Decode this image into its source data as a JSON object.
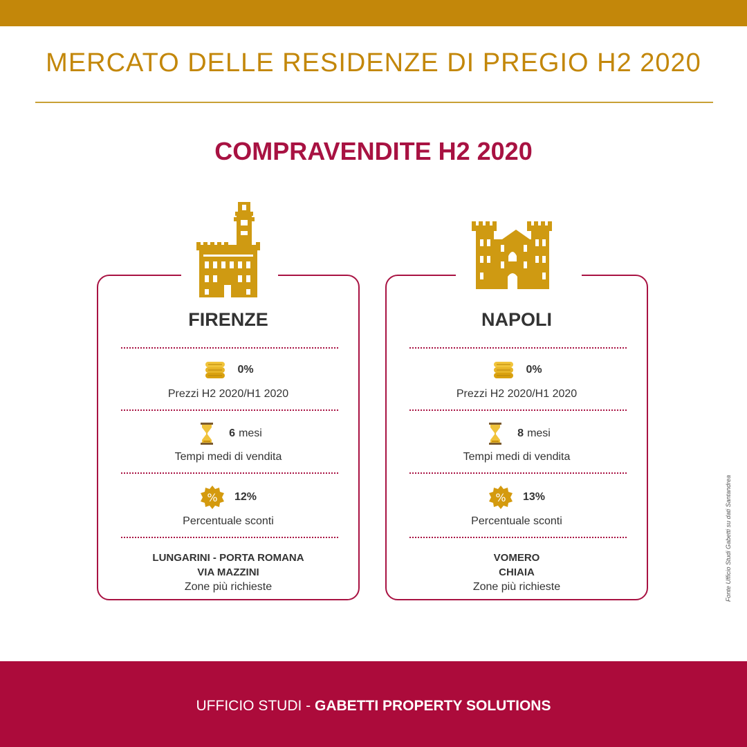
{
  "header": {
    "title": "MERCATO DELLE RESIDENZE DI PREGIO H2 2020",
    "subtitle": "COMPRAVENDITE H2 2020"
  },
  "cards": [
    {
      "city": "FIRENZE",
      "price_value": "0%",
      "price_label": "Prezzi H2 2020/H1 2020",
      "time_value": "6",
      "time_unit": "mesi",
      "time_label": "Tempi medi di vendita",
      "discount_value": "12%",
      "discount_label": "Percentuale sconti",
      "zones_line1": "LUNGARINI - PORTA ROMANA",
      "zones_line2": "VIA MAZZINI",
      "zones_caption": "Zone più richieste"
    },
    {
      "city": "NAPOLI",
      "price_value": "0%",
      "price_label": "Prezzi H2 2020/H1 2020",
      "time_value": "8",
      "time_unit": "mesi",
      "time_label": "Tempi medi di vendita",
      "discount_value": "13%",
      "discount_label": "Percentuale sconti",
      "zones_line1": "VOMERO",
      "zones_line2": "CHIAIA",
      "zones_caption": "Zone più richieste"
    }
  ],
  "source_note": "Fonte Ufficio Studi Gabetti su dati Santandrea",
  "footer": {
    "prefix": "UFFICIO STUDI - ",
    "brand": "GABETTI PROPERTY SOLUTIONS"
  },
  "colors": {
    "gold": "#c3870a",
    "crimson": "#a81242",
    "footer": "#ac0b3b"
  },
  "icons": [
    "florence-palace-icon",
    "naples-castle-icon",
    "coins-icon",
    "hourglass-icon",
    "discount-badge-icon"
  ]
}
